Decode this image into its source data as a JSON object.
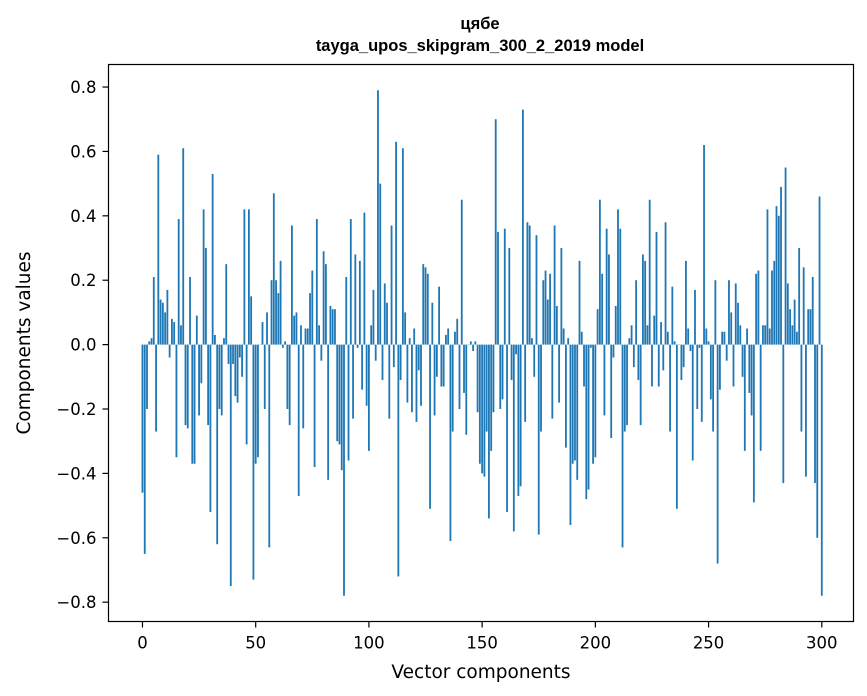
{
  "chart_data": {
    "type": "bar",
    "title": "цябе",
    "subtitle": "tayga_upos_skipgram_300_2_2019 model",
    "xlabel": "Vector components",
    "ylabel": "Components values",
    "xlim": [
      -15,
      314
    ],
    "ylim": [
      -0.86,
      0.87
    ],
    "xticks": [
      0,
      50,
      100,
      150,
      200,
      250,
      300
    ],
    "yticks": [
      -0.8,
      -0.6,
      -0.4,
      -0.2,
      0.0,
      0.2,
      0.4,
      0.6,
      0.8
    ],
    "ytick_labels": [
      "−0.8",
      "−0.6",
      "−0.4",
      "−0.2",
      "0.0",
      "0.2",
      "0.4",
      "0.6",
      "0.8"
    ],
    "grid": false,
    "bar_color": "#1f77b4",
    "values": [
      -0.46,
      -0.65,
      -0.2,
      0.01,
      0.02,
      0.21,
      -0.27,
      0.59,
      0.14,
      0.13,
      0.1,
      0.17,
      -0.04,
      0.08,
      0.07,
      -0.35,
      0.39,
      0.06,
      0.61,
      -0.25,
      -0.26,
      0.21,
      -0.37,
      -0.37,
      0.09,
      -0.22,
      -0.12,
      0.42,
      0.3,
      -0.25,
      -0.52,
      0.53,
      0.03,
      -0.62,
      -0.2,
      -0.22,
      0.02,
      0.25,
      -0.06,
      -0.75,
      -0.06,
      -0.16,
      -0.18,
      -0.04,
      -0.1,
      0.42,
      -0.31,
      0.42,
      0.15,
      -0.73,
      -0.37,
      -0.35,
      0.0,
      0.07,
      -0.2,
      0.1,
      -0.63,
      0.2,
      0.47,
      0.2,
      0.16,
      0.26,
      -0.01,
      0.01,
      -0.2,
      -0.25,
      0.37,
      0.09,
      0.1,
      -0.47,
      0.06,
      -0.26,
      0.05,
      0.05,
      0.16,
      0.23,
      -0.38,
      0.39,
      0.06,
      -0.05,
      0.29,
      0.25,
      -0.42,
      0.12,
      0.11,
      0.11,
      -0.3,
      -0.31,
      -0.39,
      -0.78,
      0.21,
      -0.36,
      0.39,
      -0.23,
      0.28,
      -0.01,
      0.26,
      -0.14,
      0.41,
      -0.19,
      -0.33,
      0.06,
      0.17,
      -0.05,
      0.79,
      0.5,
      -0.11,
      0.19,
      0.13,
      -0.23,
      0.37,
      -0.07,
      0.63,
      -0.72,
      -0.11,
      0.61,
      0.1,
      -0.18,
      0.02,
      -0.21,
      0.05,
      -0.24,
      -0.08,
      -0.19,
      0.25,
      0.24,
      0.22,
      -0.51,
      0.13,
      -0.22,
      -0.1,
      0.18,
      -0.13,
      -0.13,
      0.03,
      0.05,
      -0.61,
      -0.27,
      0.04,
      0.08,
      -0.2,
      0.45,
      -0.15,
      -0.28,
      0.0,
      0.01,
      -0.02,
      0.01,
      -0.21,
      -0.37,
      -0.4,
      -0.41,
      -0.27,
      -0.54,
      -0.33,
      -0.21,
      0.7,
      0.35,
      -0.2,
      -0.17,
      0.36,
      -0.52,
      0.3,
      -0.11,
      -0.58,
      -0.03,
      -0.47,
      -0.44,
      0.73,
      -0.24,
      0.38,
      0.37,
      0.02,
      -0.1,
      0.34,
      -0.59,
      -0.27,
      0.2,
      0.23,
      0.14,
      0.22,
      -0.23,
      0.37,
      0.12,
      -0.18,
      0.3,
      0.05,
      -0.32,
      0.02,
      -0.56,
      -0.37,
      -0.36,
      -0.42,
      0.26,
      0.04,
      -0.13,
      -0.48,
      -0.45,
      -0.01,
      -0.37,
      -0.35,
      0.11,
      0.45,
      0.22,
      -0.22,
      0.36,
      0.28,
      -0.29,
      -0.04,
      0.12,
      0.42,
      0.36,
      -0.63,
      -0.27,
      -0.25,
      0.02,
      0.06,
      -0.07,
      0.2,
      -0.11,
      -0.25,
      0.28,
      0.26,
      0.06,
      0.45,
      -0.13,
      0.09,
      0.35,
      -0.13,
      0.07,
      -0.08,
      0.38,
      0.04,
      -0.27,
      0.18,
      0.01,
      -0.51,
      0.0,
      -0.11,
      -0.07,
      0.26,
      0.05,
      -0.02,
      -0.36,
      0.17,
      -0.2,
      -0.01,
      -0.24,
      0.62,
      0.05,
      0.01,
      -0.17,
      -0.27,
      0.2,
      -0.68,
      -0.14,
      0.04,
      0.04,
      -0.05,
      0.2,
      0.1,
      -0.13,
      0.19,
      0.13,
      0.06,
      -0.1,
      -0.33,
      0.05,
      -0.15,
      -0.22,
      -0.49,
      0.22,
      0.23,
      -0.33,
      0.06,
      0.06,
      0.42,
      0.05,
      0.23,
      0.26,
      0.43,
      0.4,
      0.49,
      -0.43,
      0.55,
      0.19,
      0.11,
      0.06,
      0.14,
      0.04,
      0.3,
      -0.27,
      0.24,
      -0.41,
      0.11,
      0.11,
      0.21,
      -0.43,
      -0.6,
      0.46,
      -0.78
    ]
  }
}
